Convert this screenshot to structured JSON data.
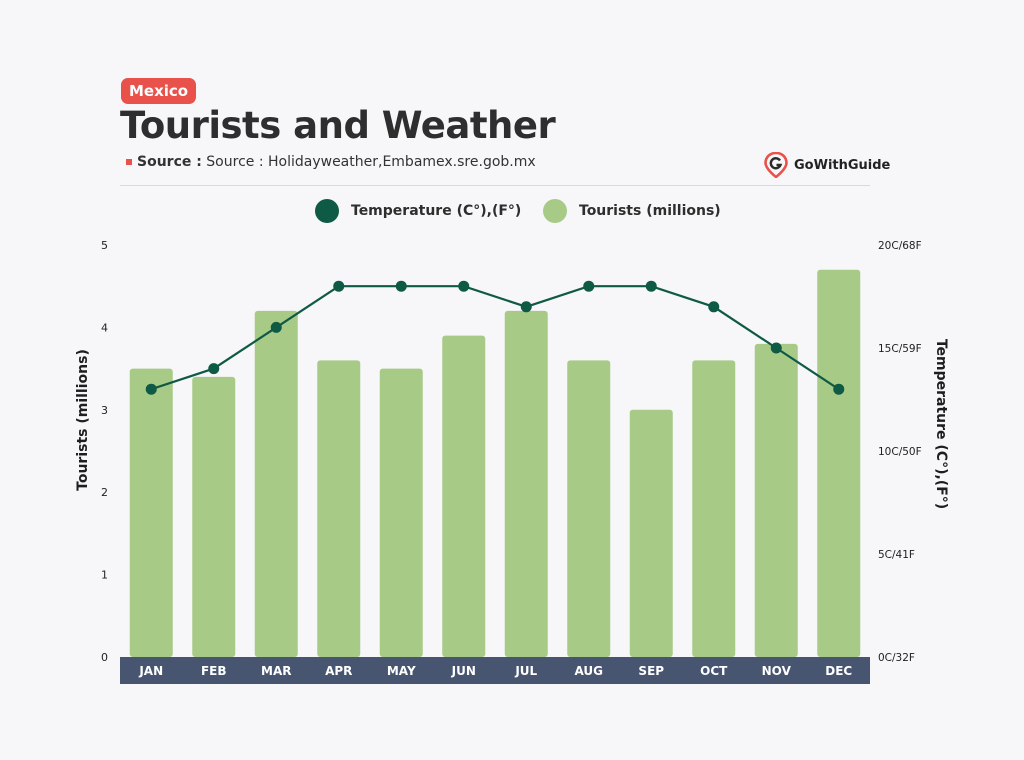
{
  "header": {
    "badge": "Mexico",
    "title": "Tourists and Weather",
    "source_label": "Source :",
    "source_text": "Source : Holidayweather,Embamex.sre.gob.mx",
    "brand": "GoWithGuide"
  },
  "colors": {
    "bar": "#a7cb87",
    "line": "#0e5a45",
    "axis_band": "#475570",
    "badge": "#e8524a"
  },
  "chart_data": {
    "type": "bar",
    "categories": [
      "JAN",
      "FEB",
      "MAR",
      "APR",
      "MAY",
      "JUN",
      "JUL",
      "AUG",
      "SEP",
      "OCT",
      "NOV",
      "DEC"
    ],
    "series": [
      {
        "name": "Tourists (millions)",
        "type": "bar",
        "axis": "left",
        "values": [
          3.5,
          3.4,
          4.2,
          3.6,
          3.5,
          3.9,
          4.2,
          3.6,
          3.0,
          3.6,
          3.8,
          4.7
        ]
      },
      {
        "name": "Temperature (C°),(F°)",
        "type": "line",
        "axis": "right",
        "values": [
          13,
          14,
          16,
          18,
          18,
          18,
          17,
          18,
          18,
          17,
          15,
          13
        ]
      }
    ],
    "ylabel_left": "Tourists (millions)",
    "ylabel_right": "Temperature (C°),(F°)",
    "ylim_left": [
      0,
      5
    ],
    "yticks_left": [
      "0",
      "1",
      "2",
      "3",
      "4",
      "5"
    ],
    "ylim_right": [
      0,
      20
    ],
    "yticks_right": [
      "0C/32F",
      "5C/41F",
      "10C/50F",
      "15C/59F",
      "20C/68F"
    ],
    "legend": "top",
    "grid": false
  }
}
